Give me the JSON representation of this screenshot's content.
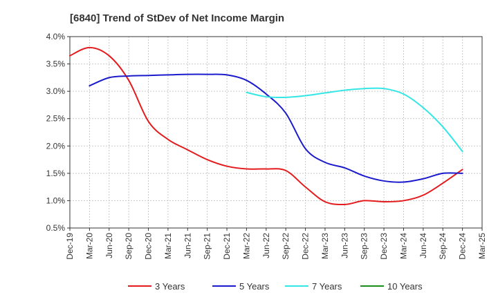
{
  "chart_data": {
    "type": "line",
    "title": "[6840]  Trend of StDev of Net Income Margin",
    "xlabel": "",
    "ylabel": "",
    "x": [
      "Dec-19",
      "Mar-20",
      "Jun-20",
      "Sep-20",
      "Dec-20",
      "Mar-21",
      "Jun-21",
      "Sep-21",
      "Dec-21",
      "Mar-22",
      "Jun-22",
      "Sep-22",
      "Dec-22",
      "Mar-23",
      "Jun-23",
      "Sep-23",
      "Dec-23",
      "Mar-24",
      "Jun-24",
      "Sep-24",
      "Dec-24",
      "Mar-25"
    ],
    "ylim": [
      0.005,
      0.04
    ],
    "yticks": [
      {
        "value": 0.005,
        "label": "0.5%"
      },
      {
        "value": 0.01,
        "label": "1.0%"
      },
      {
        "value": 0.015,
        "label": "1.5%"
      },
      {
        "value": 0.02,
        "label": "2.0%"
      },
      {
        "value": 0.025,
        "label": "2.5%"
      },
      {
        "value": 0.03,
        "label": "3.0%"
      },
      {
        "value": 0.035,
        "label": "3.5%"
      },
      {
        "value": 0.04,
        "label": "4.0%"
      }
    ],
    "grid": true,
    "legend_position": "bottom",
    "series": [
      {
        "name": "3 Years",
        "color": "#e41a1c",
        "values": [
          0.0365,
          0.038,
          0.0365,
          0.032,
          0.0245,
          0.0212,
          0.0193,
          0.0175,
          0.0163,
          0.0158,
          0.0158,
          0.0155,
          0.0125,
          0.0098,
          0.0093,
          0.01,
          0.0098,
          0.01,
          0.011,
          0.0132,
          0.0157,
          null
        ]
      },
      {
        "name": "5 Years",
        "color": "#1a1acc",
        "values": [
          null,
          0.031,
          0.0325,
          0.0328,
          0.0329,
          0.033,
          0.0331,
          0.0331,
          0.033,
          0.032,
          0.0295,
          0.026,
          0.0195,
          0.017,
          0.016,
          0.0145,
          0.0136,
          0.0134,
          0.014,
          0.015,
          0.015,
          null
        ]
      },
      {
        "name": "7 Years",
        "color": "#33e6e6",
        "values": [
          null,
          null,
          null,
          null,
          null,
          null,
          null,
          null,
          null,
          0.0298,
          0.029,
          0.0289,
          0.0292,
          0.0297,
          0.0302,
          0.0305,
          0.0305,
          0.0295,
          0.027,
          0.0235,
          0.019,
          null
        ]
      },
      {
        "name": "10 Years",
        "color": "#1a8c1a",
        "values": [
          null,
          null,
          null,
          null,
          null,
          null,
          null,
          null,
          null,
          null,
          null,
          null,
          null,
          null,
          null,
          null,
          null,
          null,
          null,
          null,
          null,
          null
        ]
      }
    ]
  }
}
